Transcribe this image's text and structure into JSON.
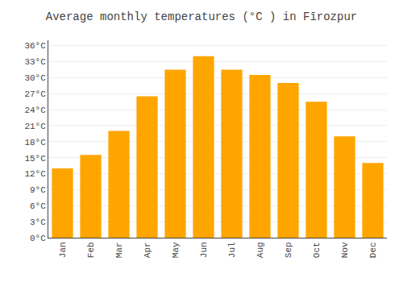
{
  "chart_data": {
    "type": "bar",
    "title": "Average monthly temperatures (°C ) in Fīrozpur",
    "categories": [
      "Jan",
      "Feb",
      "Mar",
      "Apr",
      "May",
      "Jun",
      "Jul",
      "Aug",
      "Sep",
      "Oct",
      "Nov",
      "Dec"
    ],
    "values": [
      13,
      15.5,
      20,
      26.5,
      31.5,
      34,
      31.5,
      30.5,
      29,
      25.5,
      19,
      14
    ],
    "color": "#FFA500",
    "ylim": [
      0,
      37
    ],
    "yticks": [
      {
        "value": 0,
        "label": "0°C"
      },
      {
        "value": 3,
        "label": "3°C"
      },
      {
        "value": 6,
        "label": "6°C"
      },
      {
        "value": 9,
        "label": "9°C"
      },
      {
        "value": 12,
        "label": "12°C"
      },
      {
        "value": 15,
        "label": "15°C"
      },
      {
        "value": 18,
        "label": "18°C"
      },
      {
        "value": 21,
        "label": "21°C"
      },
      {
        "value": 24,
        "label": "24°C"
      },
      {
        "value": 27,
        "label": "27°C"
      },
      {
        "value": 30,
        "label": "30°C"
      },
      {
        "value": 33,
        "label": "33°C"
      },
      {
        "value": 36,
        "label": "36°C"
      }
    ],
    "grid": true
  }
}
